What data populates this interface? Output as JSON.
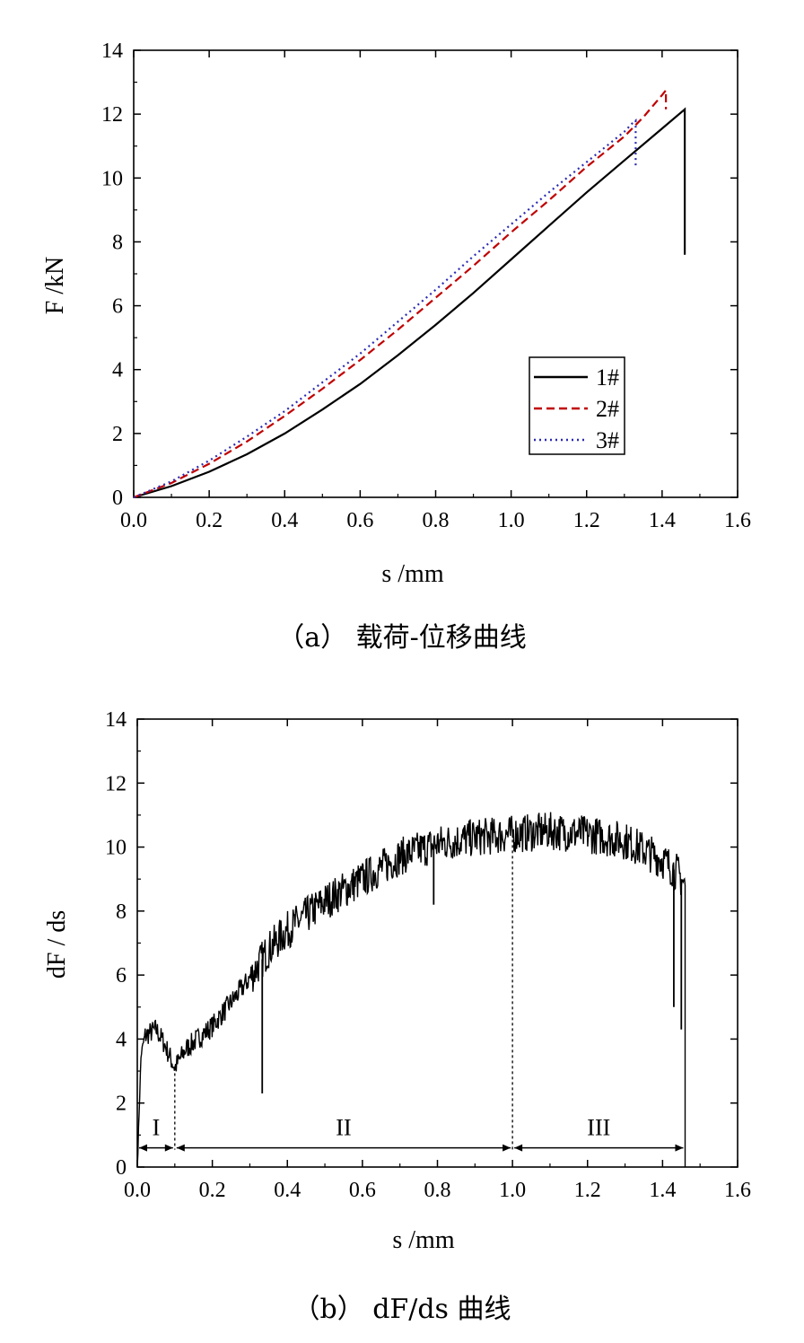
{
  "chart_data": [
    {
      "type": "line",
      "caption": "（a） 载荷-位移曲线",
      "xlabel": "s /mm",
      "ylabel": "F /kN",
      "xlim": [
        0,
        1.6
      ],
      "ylim": [
        0,
        14
      ],
      "xticks": [
        "0.0",
        "0.2",
        "0.4",
        "0.6",
        "0.8",
        "1.0",
        "1.2",
        "1.4",
        "1.6"
      ],
      "yticks": [
        "0",
        "2",
        "4",
        "6",
        "8",
        "10",
        "12",
        "14"
      ],
      "grid": false,
      "legend_position": "center-right",
      "series": [
        {
          "name": "1#",
          "color": "#000000",
          "dash": "solid",
          "x": [
            0,
            0.1,
            0.2,
            0.3,
            0.4,
            0.5,
            0.6,
            0.7,
            0.8,
            0.9,
            1.0,
            1.1,
            1.2,
            1.3,
            1.4,
            1.46,
            1.46
          ],
          "y": [
            0,
            0.35,
            0.8,
            1.35,
            2.0,
            2.75,
            3.55,
            4.45,
            5.4,
            6.4,
            7.45,
            8.5,
            9.55,
            10.55,
            11.55,
            12.15,
            7.6
          ]
        },
        {
          "name": "2#",
          "color": "#c00000",
          "dash": "dashed",
          "x": [
            0,
            0.1,
            0.2,
            0.3,
            0.4,
            0.5,
            0.6,
            0.7,
            0.8,
            0.9,
            1.0,
            1.1,
            1.2,
            1.3,
            1.35,
            1.4,
            1.41,
            1.41
          ],
          "y": [
            0,
            0.45,
            1.05,
            1.75,
            2.55,
            3.4,
            4.3,
            5.25,
            6.25,
            7.25,
            8.3,
            9.3,
            10.35,
            11.3,
            11.9,
            12.6,
            12.75,
            12.15
          ]
        },
        {
          "name": "3#",
          "color": "#2b2bb3",
          "dash": "dotted",
          "x": [
            0,
            0.1,
            0.2,
            0.3,
            0.4,
            0.5,
            0.6,
            0.7,
            0.8,
            0.9,
            1.0,
            1.1,
            1.2,
            1.3,
            1.32,
            1.33,
            1.33
          ],
          "y": [
            0,
            0.5,
            1.15,
            1.9,
            2.7,
            3.6,
            4.5,
            5.5,
            6.5,
            7.55,
            8.55,
            9.55,
            10.5,
            11.45,
            11.7,
            11.8,
            10.3
          ]
        }
      ]
    },
    {
      "type": "line",
      "caption": "（b） dF/ds 曲线",
      "xlabel": "s /mm",
      "ylabel": "dF / ds",
      "xlim": [
        0,
        1.6
      ],
      "ylim": [
        0,
        14
      ],
      "xticks": [
        "0.0",
        "0.2",
        "0.4",
        "0.6",
        "0.8",
        "1.0",
        "1.2",
        "1.4",
        "1.6"
      ],
      "yticks": [
        "0",
        "2",
        "4",
        "6",
        "8",
        "10",
        "12",
        "14"
      ],
      "grid": false,
      "series": [
        {
          "color": "#000000",
          "x": [
            0,
            0.01,
            0.02,
            0.05,
            0.07,
            0.1,
            0.13,
            0.2,
            0.3,
            0.35,
            0.4,
            0.5,
            0.6,
            0.7,
            0.8,
            0.9,
            1.0,
            1.1,
            1.2,
            1.3,
            1.4,
            1.42,
            1.44,
            1.46
          ],
          "y": [
            0,
            3.5,
            4.1,
            4.3,
            3.9,
            3.1,
            3.7,
            4.4,
            5.9,
            6.8,
            7.4,
            8.3,
            9.0,
            9.7,
            10.1,
            10.3,
            10.4,
            10.5,
            10.4,
            10.2,
            9.6,
            9.4,
            9.2,
            8.8
          ]
        }
      ],
      "spikes": [
        {
          "x": 0.333,
          "y_min": 2.3
        },
        {
          "x": 0.79,
          "y_min": 8.2
        },
        {
          "x": 1.43,
          "y_min": 5.0
        },
        {
          "x": 1.45,
          "y_min": 4.3
        }
      ],
      "boundaries": [
        0.1,
        1.0,
        1.46
      ],
      "regions": [
        {
          "label": "I",
          "from": 0.0,
          "to": 0.1
        },
        {
          "label": "II",
          "from": 0.1,
          "to": 1.0
        },
        {
          "label": "III",
          "from": 1.0,
          "to": 1.46
        }
      ]
    }
  ]
}
